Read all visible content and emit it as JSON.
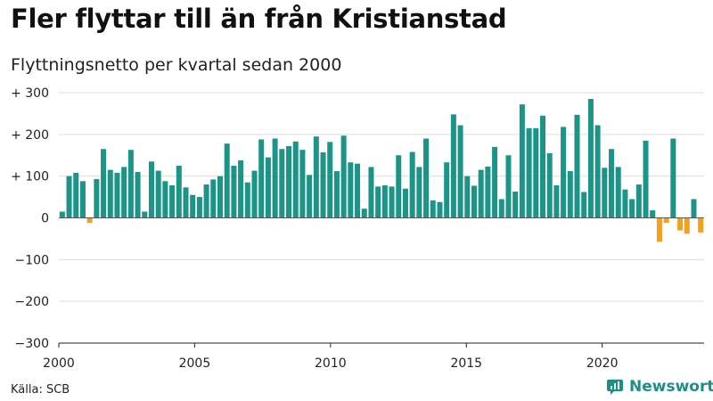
{
  "title": "Fler flyttar till än från Kristianstad",
  "subtitle": "Flyttningsnetto per kvartal sedan 2000",
  "source": "Källa: SCB",
  "brand": {
    "name": "Newsworthy",
    "icon": "newsworthy-logo-icon"
  },
  "colors": {
    "positive": "#1c9488",
    "negative": "#f5a01c",
    "grid": "#dddddd",
    "text": "#222222"
  },
  "chart_data": {
    "type": "bar",
    "x_start": 2000,
    "x_end": 2023.75,
    "ylim": [
      -300,
      300
    ],
    "yticks": [
      {
        "value": 300,
        "label": "+ 300"
      },
      {
        "value": 200,
        "label": "+ 200"
      },
      {
        "value": 100,
        "label": "+ 100"
      },
      {
        "value": 0,
        "label": "0"
      },
      {
        "value": -100,
        "label": "−100"
      },
      {
        "value": -200,
        "label": "−200"
      },
      {
        "value": -300,
        "label": "−300"
      }
    ],
    "xticks": [
      {
        "value": 2000,
        "label": "2000"
      },
      {
        "value": 2005,
        "label": "2005"
      },
      {
        "value": 2010,
        "label": "2010"
      },
      {
        "value": 2015,
        "label": "2015"
      },
      {
        "value": 2020,
        "label": "2020"
      }
    ],
    "grid": true,
    "legend": "none",
    "values": [
      15,
      100,
      108,
      88,
      -12,
      93,
      165,
      115,
      108,
      122,
      163,
      110,
      15,
      135,
      113,
      88,
      78,
      125,
      73,
      55,
      50,
      80,
      92,
      100,
      178,
      125,
      138,
      85,
      113,
      188,
      145,
      190,
      165,
      172,
      183,
      163,
      103,
      195,
      157,
      182,
      112,
      197,
      133,
      130,
      22,
      122,
      75,
      78,
      75,
      150,
      70,
      158,
      122,
      190,
      42,
      38,
      133,
      248,
      222,
      100,
      77,
      115,
      123,
      170,
      45,
      150,
      63,
      272,
      215,
      215,
      245,
      155,
      78,
      218,
      112,
      247,
      62,
      285,
      222,
      120,
      165,
      122,
      68,
      45,
      80,
      185,
      18,
      -57,
      -12,
      190,
      -30,
      -38,
      45,
      -35
    ]
  }
}
